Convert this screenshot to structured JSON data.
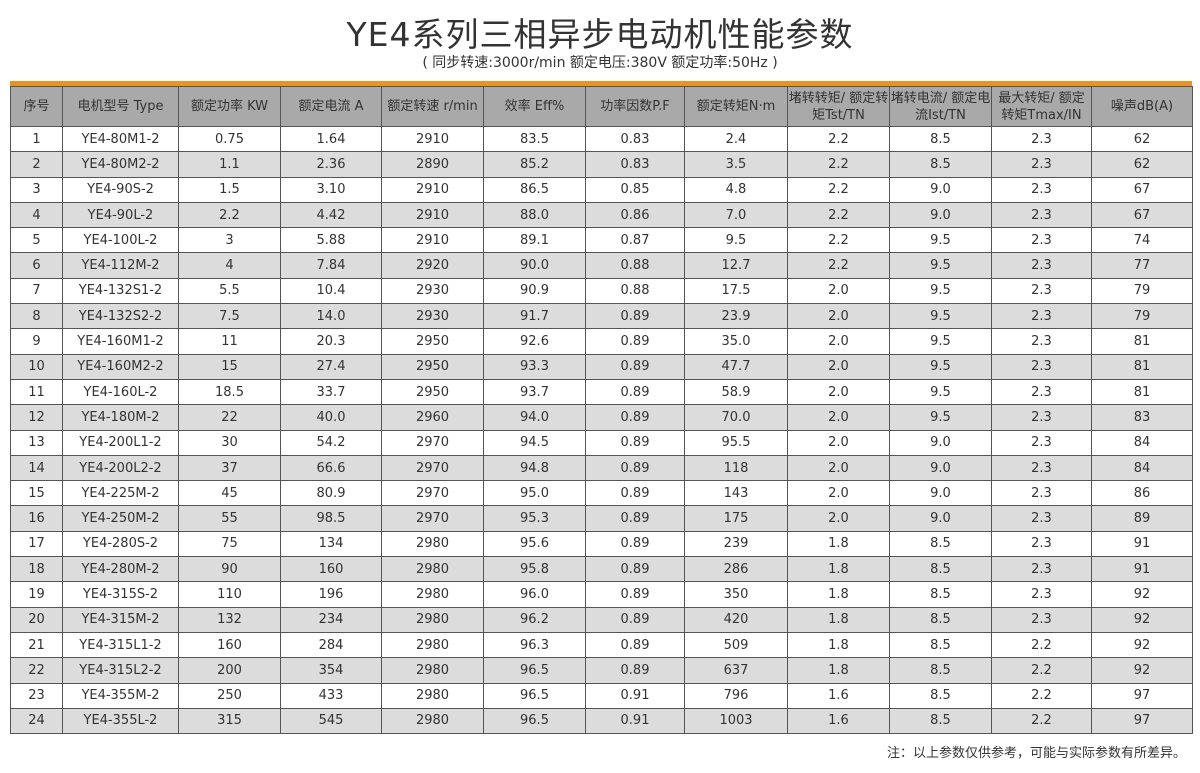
{
  "title": "YE4系列三相异步电动机性能参数",
  "subtitle": "( 同步转速:3000r/min   额定电压:380V   额定功率:50Hz )",
  "accent_color": "#e8922a",
  "headers": [
    "序号",
    "电机型号 Type",
    "额定功率 KW",
    "额定电流 A",
    "额定转速 r/min",
    "效率 Eff%",
    "功率因数P.F",
    "额定转矩N·m",
    "堵转转矩/ 额定转矩Tst/TN",
    "堵转电流/ 额定电流Ist/TN",
    "最大转矩/ 额定转矩Tmax/IN",
    "噪声dB(A)"
  ],
  "rows": [
    [
      "1",
      "YE4-80M1-2",
      "0.75",
      "1.64",
      "2910",
      "83.5",
      "0.83",
      "2.4",
      "2.2",
      "8.5",
      "2.3",
      "62"
    ],
    [
      "2",
      "YE4-80M2-2",
      "1.1",
      "2.36",
      "2890",
      "85.2",
      "0.83",
      "3.5",
      "2.2",
      "8.5",
      "2.3",
      "62"
    ],
    [
      "3",
      "YE4-90S-2",
      "1.5",
      "3.10",
      "2910",
      "86.5",
      "0.85",
      "4.8",
      "2.2",
      "9.0",
      "2.3",
      "67"
    ],
    [
      "4",
      "YE4-90L-2",
      "2.2",
      "4.42",
      "2910",
      "88.0",
      "0.86",
      "7.0",
      "2.2",
      "9.0",
      "2.3",
      "67"
    ],
    [
      "5",
      "YE4-100L-2",
      "3",
      "5.88",
      "2910",
      "89.1",
      "0.87",
      "9.5",
      "2.2",
      "9.5",
      "2.3",
      "74"
    ],
    [
      "6",
      "YE4-112M-2",
      "4",
      "7.84",
      "2920",
      "90.0",
      "0.88",
      "12.7",
      "2.2",
      "9.5",
      "2.3",
      "77"
    ],
    [
      "7",
      "YE4-132S1-2",
      "5.5",
      "10.4",
      "2930",
      "90.9",
      "0.88",
      "17.5",
      "2.0",
      "9.5",
      "2.3",
      "79"
    ],
    [
      "8",
      "YE4-132S2-2",
      "7.5",
      "14.0",
      "2930",
      "91.7",
      "0.89",
      "23.9",
      "2.0",
      "9.5",
      "2.3",
      "79"
    ],
    [
      "9",
      "YE4-160M1-2",
      "11",
      "20.3",
      "2950",
      "92.6",
      "0.89",
      "35.0",
      "2.0",
      "9.5",
      "2.3",
      "81"
    ],
    [
      "10",
      "YE4-160M2-2",
      "15",
      "27.4",
      "2950",
      "93.3",
      "0.89",
      "47.7",
      "2.0",
      "9.5",
      "2.3",
      "81"
    ],
    [
      "11",
      "YE4-160L-2",
      "18.5",
      "33.7",
      "2950",
      "93.7",
      "0.89",
      "58.9",
      "2.0",
      "9.5",
      "2.3",
      "81"
    ],
    [
      "12",
      "YE4-180M-2",
      "22",
      "40.0",
      "2960",
      "94.0",
      "0.89",
      "70.0",
      "2.0",
      "9.5",
      "2.3",
      "83"
    ],
    [
      "13",
      "YE4-200L1-2",
      "30",
      "54.2",
      "2970",
      "94.5",
      "0.89",
      "95.5",
      "2.0",
      "9.0",
      "2.3",
      "84"
    ],
    [
      "14",
      "YE4-200L2-2",
      "37",
      "66.6",
      "2970",
      "94.8",
      "0.89",
      "118",
      "2.0",
      "9.0",
      "2.3",
      "84"
    ],
    [
      "15",
      "YE4-225M-2",
      "45",
      "80.9",
      "2970",
      "95.0",
      "0.89",
      "143",
      "2.0",
      "9.0",
      "2.3",
      "86"
    ],
    [
      "16",
      "YE4-250M-2",
      "55",
      "98.5",
      "2970",
      "95.3",
      "0.89",
      "175",
      "2.0",
      "9.0",
      "2.3",
      "89"
    ],
    [
      "17",
      "YE4-280S-2",
      "75",
      "134",
      "2980",
      "95.6",
      "0.89",
      "239",
      "1.8",
      "8.5",
      "2.3",
      "91"
    ],
    [
      "18",
      "YE4-280M-2",
      "90",
      "160",
      "2980",
      "95.8",
      "0.89",
      "286",
      "1.8",
      "8.5",
      "2.3",
      "91"
    ],
    [
      "19",
      "YE4-315S-2",
      "110",
      "196",
      "2980",
      "96.0",
      "0.89",
      "350",
      "1.8",
      "8.5",
      "2.3",
      "92"
    ],
    [
      "20",
      "YE4-315M-2",
      "132",
      "234",
      "2980",
      "96.2",
      "0.89",
      "420",
      "1.8",
      "8.5",
      "2.3",
      "92"
    ],
    [
      "21",
      "YE4-315L1-2",
      "160",
      "284",
      "2980",
      "96.3",
      "0.89",
      "509",
      "1.8",
      "8.5",
      "2.2",
      "92"
    ],
    [
      "22",
      "YE4-315L2-2",
      "200",
      "354",
      "2980",
      "96.5",
      "0.89",
      "637",
      "1.8",
      "8.5",
      "2.2",
      "92"
    ],
    [
      "23",
      "YE4-355M-2",
      "250",
      "433",
      "2980",
      "96.5",
      "0.91",
      "796",
      "1.6",
      "8.5",
      "2.2",
      "97"
    ],
    [
      "24",
      "YE4-355L-2",
      "315",
      "545",
      "2980",
      "96.5",
      "0.91",
      "1003",
      "1.6",
      "8.5",
      "2.2",
      "97"
    ]
  ],
  "note": "注：以上参数仅供参考，可能与实际参数有所差异。"
}
